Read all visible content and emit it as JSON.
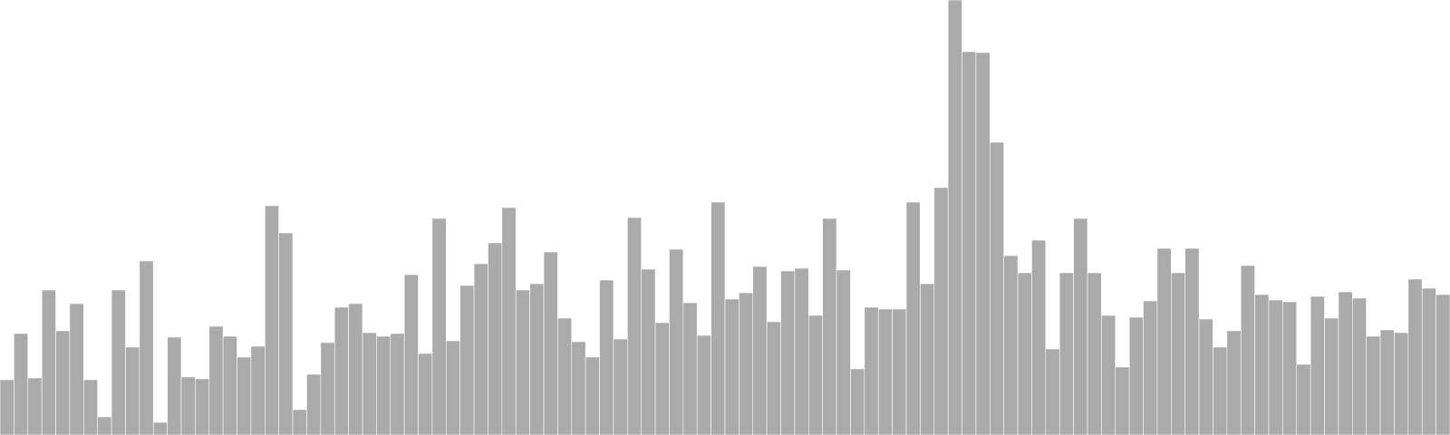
{
  "chart_data": {
    "type": "bar",
    "ylim": [
      0,
      480
    ],
    "grid": false,
    "colors": {
      "bar_fill": "#aaaaaa",
      "bar_stroke": "#ffffff",
      "background": "#ffffff"
    },
    "values": [
      61,
      112,
      63,
      160,
      115,
      145,
      61,
      20,
      160,
      97,
      192,
      14,
      108,
      64,
      62,
      120,
      109,
      86,
      98,
      253,
      223,
      28,
      67,
      102,
      141,
      145,
      113,
      109,
      112,
      177,
      90,
      239,
      104,
      165,
      189,
      212,
      251,
      160,
      167,
      202,
      129,
      103,
      86,
      171,
      106,
      240,
      183,
      124,
      205,
      146,
      110,
      257,
      150,
      157,
      186,
      125,
      181,
      184,
      132,
      239,
      182,
      73,
      141,
      139,
      139,
      257,
      167,
      273,
      480,
      423,
      422,
      323,
      198,
      179,
      215,
      95,
      179,
      239,
      179,
      132,
      75,
      130,
      148,
      206,
      179,
      206,
      128,
      97,
      115,
      187,
      155,
      149,
      147,
      78,
      153,
      129,
      158,
      151,
      109,
      116,
      113,
      172,
      162,
      155
    ]
  }
}
